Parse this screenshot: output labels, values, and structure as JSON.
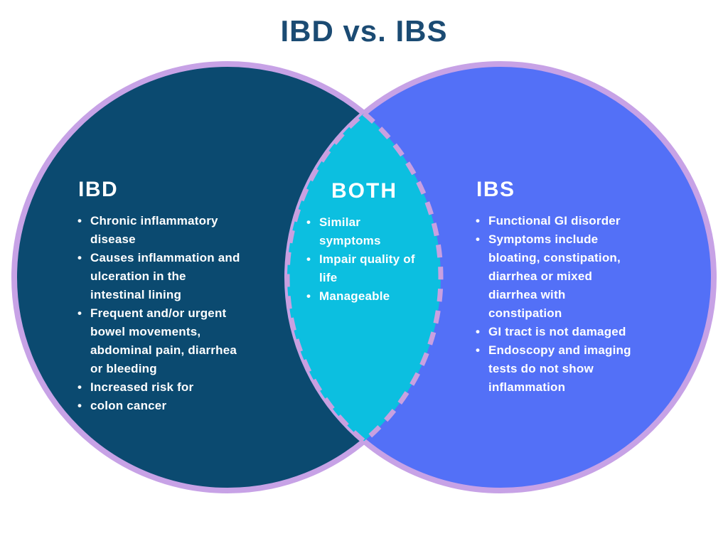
{
  "title": "IBD vs. IBS",
  "colors": {
    "title_text": "#1B4B73",
    "left_circle_fill": "#0B4A70",
    "right_circle_fill": "#5370F7",
    "overlap_fill": "#0CBFE0",
    "circle_border": "#C7A2E6",
    "overlap_dash": "#C9A0E0",
    "body_text": "#FFFFFF",
    "background": "#FFFFFF"
  },
  "venn": {
    "left": {
      "heading": "IBD",
      "items": [
        "Chronic inflammatory\ndisease",
        "Causes inflammation and\nulceration in the\nintestinal lining",
        "Frequent and/or urgent\nbowel movements,\nabdominal pain, diarrhea\nor bleeding",
        "Increased risk for",
        "colon cancer"
      ]
    },
    "both": {
      "heading": "BOTH",
      "items": [
        "Similar\nsymptoms",
        "Impair quality of\nlife",
        "Manageable"
      ]
    },
    "right": {
      "heading": "IBS",
      "items": [
        "Functional GI disorder",
        "Symptoms include\nbloating, constipation,\ndiarrhea or mixed\ndiarrhea with\nconstipation",
        "GI tract is not damaged",
        "Endoscopy and imaging\ntests do not show\ninflammation"
      ]
    }
  }
}
